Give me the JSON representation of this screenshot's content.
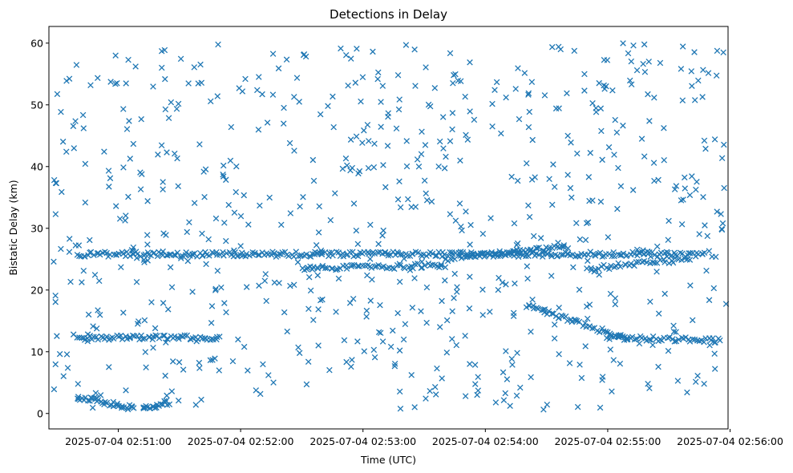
{
  "chart_data": {
    "type": "scatter",
    "title": "Detections in Delay",
    "xlabel": "Time (UTC)",
    "ylabel": "Bistatic Delay (km)",
    "x_ticks": [
      {
        "t": 50,
        "label": "2025-07-04 02:51:00"
      },
      {
        "t": 110,
        "label": "2025-07-04 02:52:00"
      },
      {
        "t": 170,
        "label": "2025-07-04 02:53:00"
      },
      {
        "t": 230,
        "label": "2025-07-04 02:54:00"
      },
      {
        "t": 290,
        "label": "2025-07-04 02:55:00"
      },
      {
        "t": 350,
        "label": "2025-07-04 02:56:00"
      }
    ],
    "y_ticks": [
      {
        "v": 0,
        "label": "0"
      },
      {
        "v": 10,
        "label": "10"
      },
      {
        "v": 20,
        "label": "20"
      },
      {
        "v": 30,
        "label": "30"
      },
      {
        "v": 40,
        "label": "40"
      },
      {
        "v": 50,
        "label": "50"
      },
      {
        "v": 60,
        "label": "60"
      }
    ],
    "x_range_seconds_after_025010": [
      16,
      349
    ],
    "ylim": [
      -2.5,
      62.7
    ],
    "marker": "x",
    "color": "#1f77b4",
    "grid": false,
    "legend": "none",
    "tracks": [
      {
        "x_start": 30,
        "x_end": 338,
        "y_start": 25.8,
        "y_end": 25.8,
        "points": 300
      },
      {
        "x_start": 30,
        "x_end": 100,
        "y_start": 12.3,
        "y_end": 12.3,
        "points": 70
      },
      {
        "x_start": 30,
        "x_end": 58,
        "y_start": 2.7,
        "y_end": 0.8,
        "points": 35
      },
      {
        "x_start": 62,
        "x_end": 75,
        "y_start": 0.7,
        "y_end": 1.8,
        "points": 20
      },
      {
        "x_start": 140,
        "x_end": 210,
        "y_start": 23.5,
        "y_end": 24.0,
        "points": 60
      },
      {
        "x_start": 210,
        "x_end": 270,
        "y_start": 25.0,
        "y_end": 27.0,
        "points": 60
      },
      {
        "x_start": 250,
        "x_end": 300,
        "y_start": 17.5,
        "y_end": 12.0,
        "points": 50
      },
      {
        "x_start": 290,
        "x_end": 345,
        "y_start": 12.3,
        "y_end": 11.8,
        "points": 50
      },
      {
        "x_start": 280,
        "x_end": 330,
        "y_start": 23.5,
        "y_end": 25.0,
        "points": 40
      }
    ],
    "clutter": {
      "x_range": [
        16,
        349
      ],
      "y_range": [
        0.5,
        60
      ],
      "points": 700
    }
  }
}
